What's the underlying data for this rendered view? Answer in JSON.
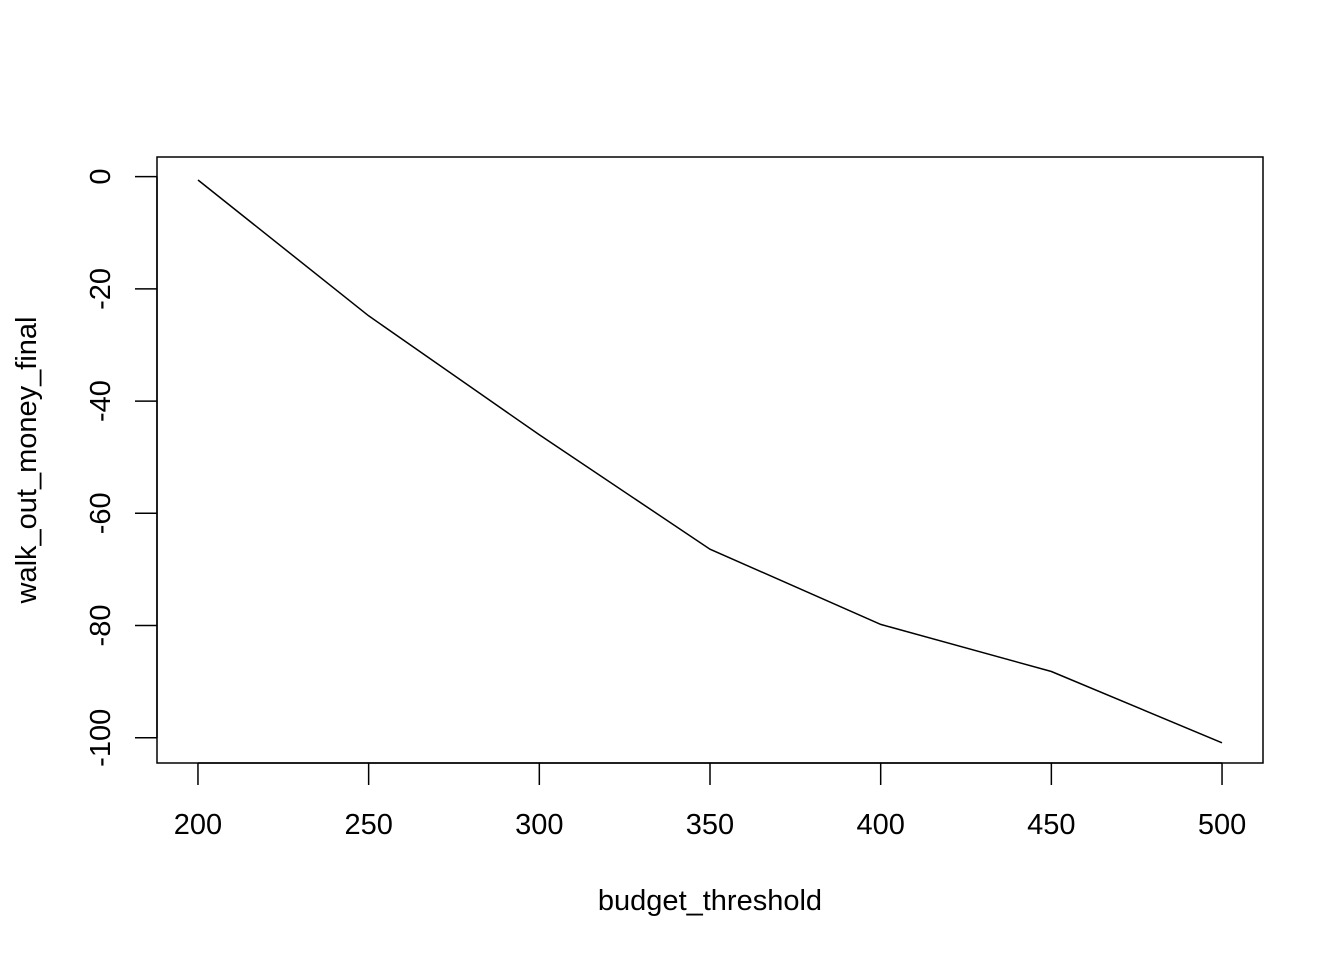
{
  "chart_data": {
    "type": "line",
    "title": "",
    "xlabel": "budget_threshold",
    "ylabel": "walk_out_money_final",
    "x": [
      200,
      250,
      300,
      350,
      400,
      450,
      500
    ],
    "series": [
      {
        "values": [
          -0.6,
          -24.8,
          -46.0,
          -66.4,
          -79.8,
          -88.2,
          -100.9
        ]
      }
    ],
    "xlim": [
      188,
      512
    ],
    "ylim": [
      -104.5,
      3.5
    ],
    "x_ticks": [
      "200",
      "250",
      "300",
      "350",
      "400",
      "450",
      "500"
    ],
    "y_ticks": [
      "0",
      "-20",
      "-40",
      "-60",
      "-80",
      "-100"
    ],
    "grid": false,
    "legend": "none",
    "line_color": "#000000"
  }
}
